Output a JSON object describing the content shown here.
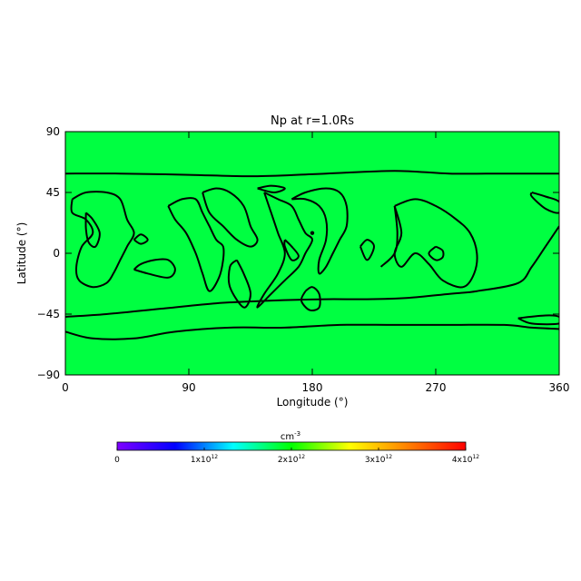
{
  "chart_data": {
    "type": "heatmap",
    "title": "Np at r=1.0Rs",
    "xlabel": "Longitude (°)",
    "ylabel": "Latitude (°)",
    "xlim": [
      0,
      360
    ],
    "ylim": [
      -90,
      90
    ],
    "xticks": [
      0,
      90,
      180,
      270,
      360
    ],
    "yticks": [
      90,
      45,
      0,
      -45,
      -90
    ],
    "field_color": "#00ff41",
    "uniform_value_approx": 2300000000000.0,
    "contours": [
      {
        "id": "north-band",
        "points": [
          [
            0,
            59
          ],
          [
            40,
            59
          ],
          [
            90,
            58
          ],
          [
            140,
            57
          ],
          [
            190,
            59
          ],
          [
            240,
            61
          ],
          [
            280,
            59
          ],
          [
            320,
            59
          ],
          [
            360,
            59
          ]
        ]
      },
      {
        "id": "south-band",
        "points": [
          [
            0,
            -47
          ],
          [
            30,
            -45
          ],
          [
            70,
            -41
          ],
          [
            110,
            -37
          ],
          [
            150,
            -35
          ],
          [
            190,
            -34
          ],
          [
            220,
            -34
          ],
          [
            250,
            -33
          ],
          [
            280,
            -30
          ],
          [
            300,
            -28
          ],
          [
            330,
            -22
          ],
          [
            340,
            -10
          ],
          [
            350,
            5
          ],
          [
            360,
            20
          ]
        ]
      },
      {
        "id": "south-boundary",
        "points": [
          [
            0,
            -58
          ],
          [
            20,
            -63
          ],
          [
            50,
            -63
          ],
          [
            80,
            -58
          ],
          [
            120,
            -55
          ],
          [
            160,
            -55
          ],
          [
            200,
            -53
          ],
          [
            240,
            -53
          ],
          [
            280,
            -53
          ],
          [
            320,
            -53
          ],
          [
            340,
            -55
          ],
          [
            360,
            -56
          ]
        ]
      },
      {
        "id": "south-lobe",
        "points": [
          [
            330,
            -48
          ],
          [
            350,
            -46
          ],
          [
            360,
            -47
          ],
          [
            360,
            -52
          ],
          [
            340,
            -52
          ],
          [
            330,
            -48
          ]
        ]
      },
      {
        "id": "north-lobe-east",
        "points": [
          [
            340,
            45
          ],
          [
            350,
            42
          ],
          [
            360,
            38
          ],
          [
            360,
            30
          ],
          [
            350,
            33
          ],
          [
            340,
            42
          ],
          [
            340,
            45
          ]
        ]
      },
      {
        "id": "cell-a",
        "points": [
          [
            5,
            40
          ],
          [
            15,
            45
          ],
          [
            30,
            45
          ],
          [
            40,
            40
          ],
          [
            45,
            25
          ],
          [
            50,
            15
          ],
          [
            45,
            5
          ],
          [
            40,
            -5
          ],
          [
            35,
            -15
          ],
          [
            30,
            -22
          ],
          [
            20,
            -25
          ],
          [
            10,
            -20
          ],
          [
            8,
            -10
          ],
          [
            12,
            5
          ],
          [
            20,
            15
          ],
          [
            15,
            25
          ],
          [
            5,
            30
          ],
          [
            5,
            40
          ]
        ]
      },
      {
        "id": "cell-a-inner",
        "points": [
          [
            15,
            30
          ],
          [
            20,
            25
          ],
          [
            25,
            15
          ],
          [
            22,
            5
          ],
          [
            17,
            8
          ],
          [
            15,
            18
          ],
          [
            15,
            30
          ]
        ]
      },
      {
        "id": "cell-b",
        "points": [
          [
            50,
            10
          ],
          [
            55,
            7
          ],
          [
            60,
            10
          ],
          [
            55,
            14
          ],
          [
            50,
            10
          ]
        ]
      },
      {
        "id": "cell-c",
        "points": [
          [
            50,
            -12
          ],
          [
            60,
            -15
          ],
          [
            75,
            -18
          ],
          [
            80,
            -12
          ],
          [
            75,
            -5
          ],
          [
            65,
            -5
          ],
          [
            55,
            -8
          ],
          [
            50,
            -12
          ]
        ]
      },
      {
        "id": "cell-d",
        "points": [
          [
            75,
            35
          ],
          [
            85,
            40
          ],
          [
            95,
            40
          ],
          [
            100,
            30
          ],
          [
            105,
            20
          ],
          [
            110,
            10
          ],
          [
            115,
            5
          ],
          [
            115,
            -5
          ],
          [
            112,
            -18
          ],
          [
            105,
            -28
          ],
          [
            100,
            -15
          ],
          [
            95,
            0
          ],
          [
            88,
            15
          ],
          [
            80,
            25
          ],
          [
            75,
            35
          ]
        ]
      },
      {
        "id": "cell-e",
        "points": [
          [
            100,
            45
          ],
          [
            110,
            48
          ],
          [
            120,
            45
          ],
          [
            130,
            35
          ],
          [
            135,
            20
          ],
          [
            140,
            10
          ],
          [
            135,
            5
          ],
          [
            125,
            10
          ],
          [
            115,
            20
          ],
          [
            105,
            30
          ],
          [
            100,
            45
          ]
        ]
      },
      {
        "id": "cell-f",
        "points": [
          [
            125,
            -5
          ],
          [
            130,
            -15
          ],
          [
            135,
            -30
          ],
          [
            130,
            -40
          ],
          [
            120,
            -25
          ],
          [
            120,
            -10
          ],
          [
            125,
            -5
          ]
        ]
      },
      {
        "id": "cell-g",
        "points": [
          [
            140,
            48
          ],
          [
            150,
            50
          ],
          [
            160,
            48
          ],
          [
            152,
            45
          ],
          [
            140,
            48
          ]
        ]
      },
      {
        "id": "cell-h",
        "points": [
          [
            145,
            45
          ],
          [
            155,
            40
          ],
          [
            165,
            35
          ],
          [
            170,
            25
          ],
          [
            175,
            15
          ],
          [
            180,
            10
          ],
          [
            175,
            0
          ],
          [
            170,
            -10
          ],
          [
            160,
            -20
          ],
          [
            150,
            -30
          ],
          [
            140,
            -40
          ],
          [
            145,
            -30
          ],
          [
            155,
            -15
          ],
          [
            160,
            0
          ],
          [
            155,
            15
          ],
          [
            150,
            30
          ],
          [
            145,
            45
          ]
        ]
      },
      {
        "id": "cell-i",
        "points": [
          [
            160,
            10
          ],
          [
            165,
            5
          ],
          [
            170,
            -2
          ],
          [
            165,
            -5
          ],
          [
            160,
            5
          ],
          [
            160,
            10
          ]
        ]
      },
      {
        "id": "cell-j",
        "points": [
          [
            175,
            -28
          ],
          [
            180,
            -25
          ],
          [
            185,
            -30
          ],
          [
            185,
            -40
          ],
          [
            178,
            -42
          ],
          [
            172,
            -35
          ],
          [
            175,
            -28
          ]
        ]
      },
      {
        "id": "cell-k",
        "points": [
          [
            165,
            40
          ],
          [
            175,
            45
          ],
          [
            190,
            48
          ],
          [
            200,
            45
          ],
          [
            205,
            35
          ],
          [
            205,
            20
          ],
          [
            200,
            10
          ],
          [
            195,
            0
          ],
          [
            190,
            -10
          ],
          [
            185,
            -15
          ],
          [
            185,
            -5
          ],
          [
            190,
            10
          ],
          [
            190,
            25
          ],
          [
            185,
            35
          ],
          [
            175,
            40
          ],
          [
            165,
            40
          ]
        ]
      },
      {
        "id": "cell-l",
        "points": [
          [
            215,
            5
          ],
          [
            220,
            10
          ],
          [
            225,
            5
          ],
          [
            220,
            -5
          ],
          [
            215,
            5
          ]
        ]
      },
      {
        "id": "cell-m",
        "points": [
          [
            240,
            35
          ],
          [
            255,
            40
          ],
          [
            270,
            35
          ],
          [
            285,
            25
          ],
          [
            295,
            15
          ],
          [
            300,
            0
          ],
          [
            298,
            -15
          ],
          [
            290,
            -25
          ],
          [
            275,
            -20
          ],
          [
            265,
            -8
          ],
          [
            255,
            0
          ],
          [
            245,
            -10
          ],
          [
            240,
            0
          ],
          [
            245,
            15
          ],
          [
            240,
            35
          ]
        ]
      },
      {
        "id": "cell-n",
        "points": [
          [
            270,
            5
          ],
          [
            275,
            2
          ],
          [
            275,
            -3
          ],
          [
            270,
            -5
          ],
          [
            265,
            0
          ],
          [
            270,
            5
          ]
        ]
      },
      {
        "id": "cell-o",
        "points": [
          [
            230,
            -10
          ],
          [
            240,
            0
          ],
          [
            242,
            15
          ],
          [
            240,
            35
          ]
        ]
      }
    ],
    "point_markers": [
      [
        180,
        15
      ]
    ]
  },
  "colorbar": {
    "unit_label": "cm",
    "unit_exponent": "-3",
    "stops": [
      "#7f00ff",
      "#0000ff",
      "#00ffff",
      "#00ff00",
      "#ffff00",
      "#ff8000",
      "#ff0000"
    ],
    "min": 0,
    "max": 4000000000000.0,
    "ticks": [
      {
        "value": 0,
        "mantissa": "0",
        "exponent": ""
      },
      {
        "value": 1000000000000.0,
        "mantissa": "1x10",
        "exponent": "12"
      },
      {
        "value": 2000000000000.0,
        "mantissa": "2x10",
        "exponent": "12"
      },
      {
        "value": 3000000000000.0,
        "mantissa": "3x10",
        "exponent": "12"
      },
      {
        "value": 4000000000000.0,
        "mantissa": "4x10",
        "exponent": "12"
      }
    ]
  }
}
